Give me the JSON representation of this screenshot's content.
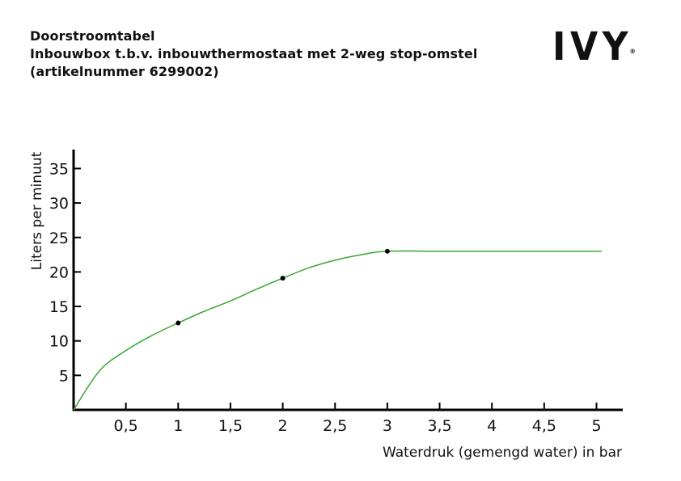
{
  "header": {
    "line1": "Doorstroomtabel",
    "line2": "Inbouwbox t.b.v. inbouwthermostaat met 2-weg stop-omstel",
    "line3": "(artikelnummer 6299002)"
  },
  "logo": {
    "text": "IVY",
    "mark": "®"
  },
  "chart_data": {
    "type": "line",
    "xlabel": "Waterdruk (gemengd water) in bar",
    "ylabel": "Liters per minuut",
    "xlim": [
      0,
      5.25
    ],
    "ylim": [
      0,
      38
    ],
    "xticks": [
      0.5,
      1,
      1.5,
      2,
      2.5,
      3,
      3.5,
      4,
      4.5,
      5
    ],
    "xtick_labels": [
      "0,5",
      "1",
      "1,5",
      "2",
      "2,5",
      "3",
      "3,5",
      "4",
      "4,5",
      "5"
    ],
    "yticks": [
      5,
      10,
      15,
      20,
      25,
      30,
      35
    ],
    "ytick_labels": [
      "5",
      "10",
      "15",
      "20",
      "25",
      "30",
      "35"
    ],
    "series": [
      {
        "x": [
          0,
          0.25,
          0.5,
          0.75,
          1,
          1.25,
          1.5,
          1.75,
          2,
          2.25,
          2.5,
          2.75,
          3,
          3.5,
          4,
          4.5,
          5.05
        ],
        "y": [
          0,
          5.7,
          8.6,
          10.8,
          12.6,
          14.3,
          15.8,
          17.5,
          19.1,
          20.6,
          21.7,
          22.5,
          23,
          23,
          23,
          23,
          23
        ],
        "color": "#3aa635"
      }
    ],
    "markers": {
      "x": [
        1,
        2,
        3
      ],
      "y": [
        12.6,
        19.1,
        23
      ],
      "color": "#000000"
    },
    "grid": false
  }
}
